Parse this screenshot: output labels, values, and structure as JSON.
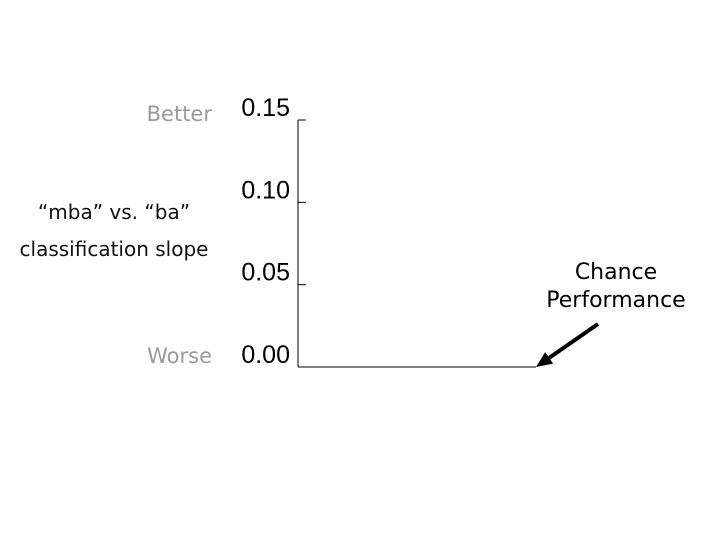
{
  "chart_data": {
    "type": "line",
    "ylabel": "“mba” vs. “ba” classification slope",
    "ylim": [
      0,
      0.15
    ],
    "yticks": [
      "0.00",
      "0.05",
      "0.10",
      "0.15"
    ],
    "ytick_values": [
      0,
      0.05,
      0.1,
      0.15
    ],
    "top_label": "Better",
    "bottom_label": "Worse",
    "series": [
      {
        "values": [
          0,
          0
        ],
        "color": "#000000"
      }
    ],
    "annotation": {
      "line1": "Chance",
      "line2": "Performance",
      "target_value": 0
    },
    "grid": false
  }
}
